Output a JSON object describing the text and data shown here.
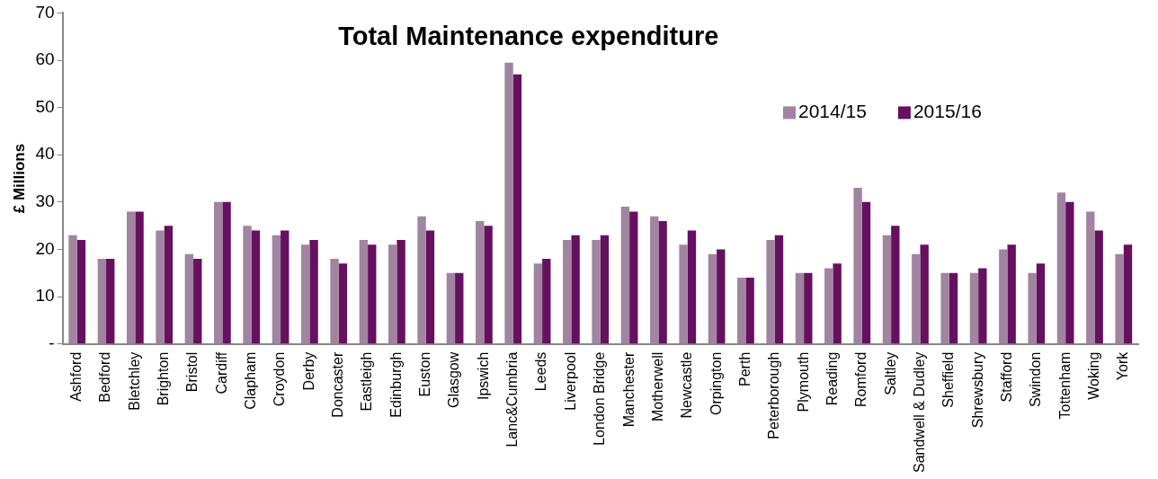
{
  "chart_data": {
    "type": "bar",
    "title": "Total Maintenance expenditure",
    "ylabel": "£ Millions",
    "categories": [
      "Ashford",
      "Bedford",
      "Bletchley",
      "Brighton",
      "Bristol",
      "Cardiff",
      "Clapham",
      "Croydon",
      "Derby",
      "Doncaster",
      "Eastleigh",
      "Edinburgh",
      "Euston",
      "Glasgow",
      "Ipswich",
      "Lanc&Cumbria",
      "Leeds",
      "Liverpool",
      "London Bridge",
      "Manchester",
      "Motherwell",
      "Newcastle",
      "Orpington",
      "Perth",
      "Peterborough",
      "Plymouth",
      "Reading",
      "Romford",
      "Saltley",
      "Sandwell & Dudley",
      "Sheffield",
      "Shrewsbury",
      "Stafford",
      "Swindon",
      "Tottenham",
      "Woking",
      "York"
    ],
    "series": [
      {
        "name": "2014/15",
        "color": "#a084a0",
        "values": [
          23,
          18,
          28,
          24,
          19,
          30,
          25,
          23,
          21,
          18,
          22,
          21,
          27,
          15,
          26,
          59.5,
          17,
          22,
          22,
          29,
          27,
          21,
          19,
          14,
          22,
          15,
          16,
          33,
          23,
          19,
          15,
          15,
          20,
          15,
          32,
          28,
          19
        ]
      },
      {
        "name": "2015/16",
        "color": "#661060",
        "values": [
          22,
          18,
          28,
          25,
          18,
          30,
          24,
          24,
          22,
          17,
          21,
          22,
          24,
          15,
          25,
          57,
          18,
          23,
          23,
          28,
          26,
          24,
          20,
          14,
          23,
          15,
          17,
          30,
          25,
          21,
          15,
          16,
          21,
          17,
          30,
          24,
          21
        ]
      }
    ],
    "ylim": [
      0,
      70
    ],
    "yticks": [
      {
        "value": 0,
        "label": "-"
      },
      10,
      20,
      30,
      40,
      50,
      60,
      70
    ],
    "grid": false,
    "legend": "top right"
  }
}
